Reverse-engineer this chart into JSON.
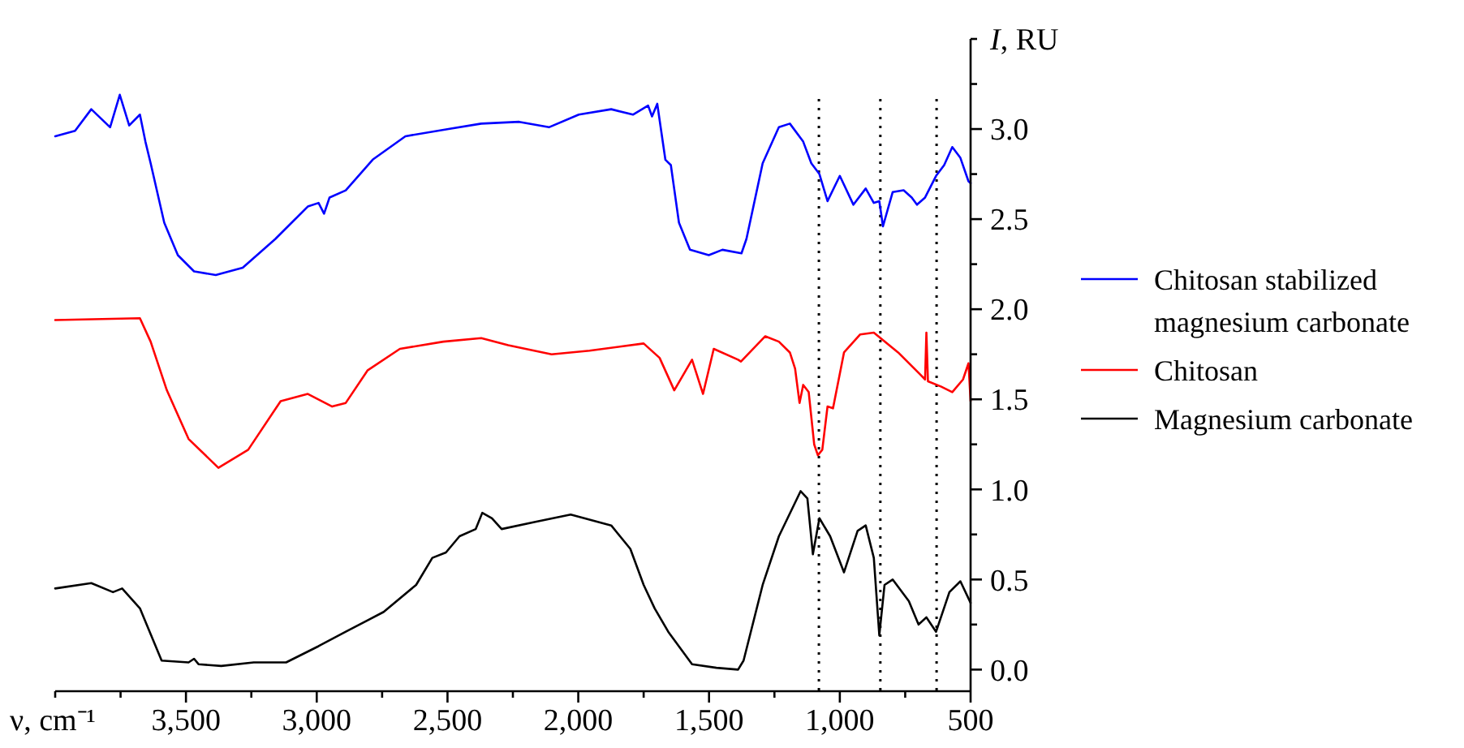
{
  "chart_data": {
    "type": "line",
    "xlabel": "ν, cm⁻¹",
    "ylabel": "I, RU",
    "xlim": [
      4000,
      500
    ],
    "ylim": [
      -0.12,
      3.5
    ],
    "xticks": [
      {
        "value": 4000,
        "label": null
      },
      {
        "value": 3750,
        "label": null
      },
      {
        "value": 3500,
        "label": "3,500"
      },
      {
        "value": 3250,
        "label": null
      },
      {
        "value": 3000,
        "label": "3,000"
      },
      {
        "value": 2750,
        "label": null
      },
      {
        "value": 2500,
        "label": "2,500"
      },
      {
        "value": 2250,
        "label": null
      },
      {
        "value": 2000,
        "label": "2,000"
      },
      {
        "value": 1750,
        "label": null
      },
      {
        "value": 1500,
        "label": "1,500"
      },
      {
        "value": 1250,
        "label": null
      },
      {
        "value": 1000,
        "label": "1,000"
      },
      {
        "value": 750,
        "label": null
      },
      {
        "value": 500,
        "label": "500"
      }
    ],
    "yticks": [
      {
        "value": 0,
        "label": "0.0"
      },
      {
        "value": 0.25,
        "label": null
      },
      {
        "value": 0.5,
        "label": "0.5"
      },
      {
        "value": 0.75,
        "label": null
      },
      {
        "value": 1,
        "label": "1.0"
      },
      {
        "value": 1.25,
        "label": null
      },
      {
        "value": 1.5,
        "label": "1.5"
      },
      {
        "value": 1.75,
        "label": null
      },
      {
        "value": 2,
        "label": "2.0"
      },
      {
        "value": 2.25,
        "label": null
      },
      {
        "value": 2.5,
        "label": "2.5"
      },
      {
        "value": 2.75,
        "label": null
      },
      {
        "value": 3,
        "label": "3.0"
      },
      {
        "value": 3.25,
        "label": null
      },
      {
        "value": 3.5,
        "label": null
      }
    ],
    "grid": false,
    "legend": "right",
    "marker": "none",
    "line_style": "solid",
    "ref_lines": [
      {
        "axis": "x",
        "value": 1080,
        "line_style": "dotted",
        "color": "#000000"
      },
      {
        "axis": "x",
        "value": 845,
        "line_style": "dotted",
        "color": "#000000"
      },
      {
        "axis": "x",
        "value": 630,
        "line_style": "dotted",
        "color": "#000000"
      }
    ],
    "series": [
      {
        "name": "Chitosan stabilized magnesium carbonate",
        "color": "#0000ff",
        "x": [
          4000,
          3924,
          3862,
          3790,
          3753,
          3717,
          3676,
          3655,
          3635,
          3583,
          3531,
          3469,
          3386,
          3283,
          3158,
          3034,
          2993,
          2972,
          2951,
          2889,
          2786,
          2661,
          2496,
          2371,
          2226,
          2112,
          1998,
          1874,
          1791,
          1733,
          1718,
          1698,
          1667,
          1646,
          1615,
          1573,
          1501,
          1449,
          1376,
          1357,
          1295,
          1233,
          1191,
          1140,
          1109,
          1078,
          1047,
          1000,
          948,
          901,
          870,
          849,
          835,
          798,
          756,
          725,
          705,
          674,
          632,
          601,
          570,
          539,
          508,
          500
        ],
        "values": [
          2.96,
          2.99,
          3.11,
          3.01,
          3.19,
          3.02,
          3.08,
          2.93,
          2.81,
          2.48,
          2.3,
          2.21,
          2.19,
          2.23,
          2.39,
          2.57,
          2.59,
          2.53,
          2.62,
          2.66,
          2.83,
          2.96,
          3.0,
          3.03,
          3.04,
          3.01,
          3.08,
          3.11,
          3.08,
          3.13,
          3.07,
          3.14,
          2.83,
          2.8,
          2.48,
          2.33,
          2.3,
          2.33,
          2.31,
          2.39,
          2.81,
          3.01,
          3.03,
          2.93,
          2.81,
          2.75,
          2.6,
          2.74,
          2.58,
          2.67,
          2.59,
          2.6,
          2.46,
          2.65,
          2.66,
          2.62,
          2.58,
          2.62,
          2.74,
          2.8,
          2.9,
          2.84,
          2.71,
          2.7
        ]
      },
      {
        "name": "Chitosan",
        "color": "#ff0000",
        "x": [
          4000,
          3676,
          3635,
          3573,
          3490,
          3376,
          3262,
          3138,
          3034,
          2941,
          2889,
          2806,
          2682,
          2516,
          2371,
          2268,
          2102,
          1957,
          1750,
          1689,
          1633,
          1565,
          1523,
          1482,
          1389,
          1378,
          1285,
          1233,
          1191,
          1171,
          1154,
          1140,
          1119,
          1098,
          1084,
          1067,
          1047,
          1026,
          984,
          922,
          870,
          777,
          694,
          674,
          669,
          663,
          612,
          570,
          529,
          508,
          500
        ],
        "values": [
          1.94,
          1.95,
          1.82,
          1.55,
          1.28,
          1.12,
          1.22,
          1.49,
          1.53,
          1.46,
          1.48,
          1.66,
          1.78,
          1.82,
          1.84,
          1.8,
          1.75,
          1.77,
          1.81,
          1.73,
          1.55,
          1.72,
          1.53,
          1.78,
          1.72,
          1.71,
          1.85,
          1.82,
          1.76,
          1.67,
          1.48,
          1.58,
          1.54,
          1.25,
          1.19,
          1.22,
          1.46,
          1.45,
          1.76,
          1.86,
          1.87,
          1.76,
          1.64,
          1.61,
          1.87,
          1.6,
          1.57,
          1.54,
          1.61,
          1.7,
          1.49
        ]
      },
      {
        "name": "Magnesium carbonate",
        "color": "#000000",
        "x": [
          4000,
          3862,
          3779,
          3744,
          3676,
          3593,
          3490,
          3469,
          3452,
          3365,
          3241,
          3117,
          2993,
          2889,
          2744,
          2620,
          2558,
          2506,
          2454,
          2392,
          2367,
          2330,
          2293,
          2164,
          2029,
          1874,
          1801,
          1750,
          1708,
          1656,
          1565,
          1472,
          1389,
          1368,
          1295,
          1233,
          1150,
          1124,
          1103,
          1078,
          1037,
          984,
          932,
          901,
          870,
          849,
          829,
          798,
          736,
          699,
          669,
          632,
          581,
          539,
          500
        ],
        "values": [
          0.45,
          0.48,
          0.43,
          0.45,
          0.34,
          0.05,
          0.04,
          0.06,
          0.03,
          0.02,
          0.04,
          0.04,
          0.13,
          0.21,
          0.32,
          0.47,
          0.62,
          0.65,
          0.74,
          0.78,
          0.87,
          0.84,
          0.78,
          0.82,
          0.86,
          0.8,
          0.67,
          0.47,
          0.34,
          0.21,
          0.03,
          0.01,
          0.0,
          0.05,
          0.47,
          0.74,
          0.99,
          0.95,
          0.64,
          0.84,
          0.74,
          0.54,
          0.77,
          0.8,
          0.62,
          0.19,
          0.47,
          0.5,
          0.38,
          0.25,
          0.29,
          0.21,
          0.43,
          0.49,
          0.37
        ]
      }
    ]
  }
}
